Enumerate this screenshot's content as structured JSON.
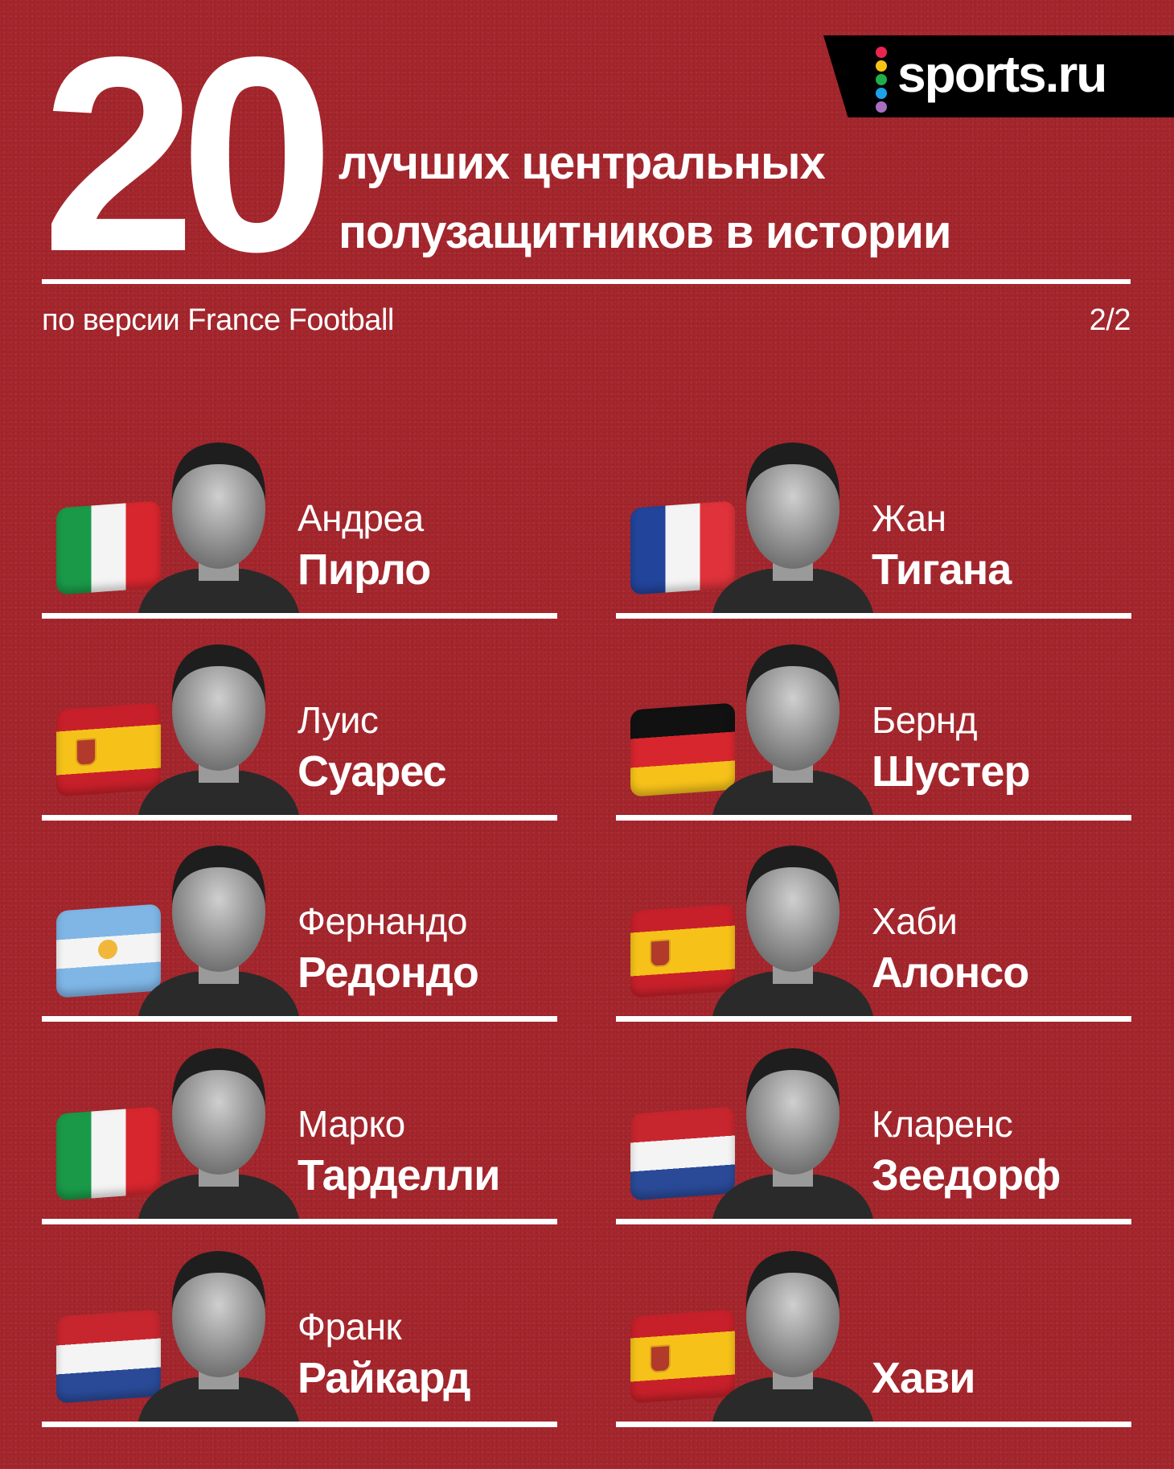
{
  "header": {
    "number": "20",
    "title_line1": "лучших центральных",
    "title_line2": "полузащитников в истории",
    "subtitle": "по версии France Football",
    "page": "2/2"
  },
  "logo": {
    "text": "sports.ru",
    "dot_colors": [
      "#e8254e",
      "#f3c512",
      "#1fae4b",
      "#1aa3e8",
      "#a86fc0"
    ]
  },
  "colors": {
    "background": "#a5262d",
    "logo_bg": "#000000",
    "text": "#ffffff"
  },
  "flags": {
    "italy": {
      "stripes": "vertical",
      "colors": [
        "#1a9a48",
        "#f4f4f4",
        "#d8262e"
      ]
    },
    "france": {
      "stripes": "vertical",
      "colors": [
        "#22449a",
        "#f4f4f4",
        "#e0323a"
      ]
    },
    "spain": {
      "stripes": "spain",
      "colors": [
        "#c8202a",
        "#f6c21a",
        "#c8202a"
      ]
    },
    "germany": {
      "stripes": "horizontal",
      "colors": [
        "#111111",
        "#d8262e",
        "#f6c21a"
      ]
    },
    "argentina": {
      "stripes": "horizontal",
      "colors": [
        "#7fb6e6",
        "#f4f4f4",
        "#7fb6e6"
      ]
    },
    "netherlands": {
      "stripes": "horizontal",
      "colors": [
        "#c8262e",
        "#f4f4f4",
        "#2a4a98"
      ]
    }
  },
  "players": [
    {
      "first": "Андреа",
      "last": "Пирло",
      "flag": "italy",
      "flag_icon": "italy-flag-icon"
    },
    {
      "first": "Жан",
      "last": "Тигана",
      "flag": "france",
      "flag_icon": "france-flag-icon"
    },
    {
      "first": "Луис",
      "last": "Суарес",
      "flag": "spain",
      "flag_icon": "spain-flag-icon"
    },
    {
      "first": "Бернд",
      "last": "Шустер",
      "flag": "germany",
      "flag_icon": "germany-flag-icon"
    },
    {
      "first": "Фернандо",
      "last": "Редондо",
      "flag": "argentina",
      "flag_icon": "argentina-flag-icon"
    },
    {
      "first": "Хаби",
      "last": "Алонсо",
      "flag": "spain",
      "flag_icon": "spain-flag-icon"
    },
    {
      "first": "Марко",
      "last": "Тарделли",
      "flag": "italy",
      "flag_icon": "italy-flag-icon"
    },
    {
      "first": "Кларенс",
      "last": "Зеедорф",
      "flag": "netherlands",
      "flag_icon": "netherlands-flag-icon"
    },
    {
      "first": "Франк",
      "last": "Райкард",
      "flag": "netherlands",
      "flag_icon": "netherlands-flag-icon"
    },
    {
      "first": "",
      "last": "Хави",
      "flag": "spain",
      "flag_icon": "spain-flag-icon"
    }
  ]
}
